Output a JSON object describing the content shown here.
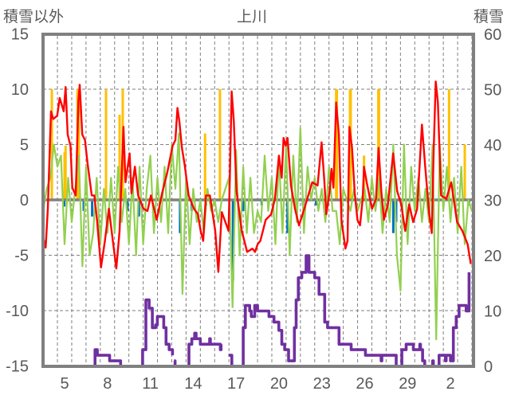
{
  "chart_data": {
    "type": "line",
    "title": "上川",
    "ylabel_left": "積雪以外",
    "ylabel_right": "積雪",
    "ylim_left": [
      -15,
      15
    ],
    "yticks_left": [
      15,
      10,
      5,
      0,
      -5,
      -10,
      -15
    ],
    "ylim_right": [
      0,
      60
    ],
    "yticks_right": [
      60,
      50,
      40,
      30,
      20,
      10,
      0
    ],
    "x_range_days": [
      3.5,
      33.6
    ],
    "x_ticks": [
      {
        "day": 5,
        "label": "5"
      },
      {
        "day": 8,
        "label": "8"
      },
      {
        "day": 11,
        "label": "11"
      },
      {
        "day": 14,
        "label": "14"
      },
      {
        "day": 17,
        "label": "17"
      },
      {
        "day": 20,
        "label": "20"
      },
      {
        "day": 23,
        "label": "23"
      },
      {
        "day": 26,
        "label": "26"
      },
      {
        "day": 29,
        "label": "29"
      },
      {
        "day": 32,
        "label": "2"
      }
    ],
    "grid": true,
    "colors": {
      "red": "#ff0000",
      "green": "#92d050",
      "yellow": "#ffc000",
      "blue": "#0070c0",
      "purple": "#7030a0",
      "frame": "#808080"
    },
    "red_series": [
      [
        3.46,
        -3.2
      ],
      [
        3.68,
        -4.3
      ],
      [
        3.83,
        -0.8
      ],
      [
        4.0,
        6.1
      ],
      [
        4.05,
        8.0
      ],
      [
        4.2,
        7.3
      ],
      [
        4.48,
        7.6
      ],
      [
        4.66,
        9.2
      ],
      [
        4.94,
        8.0
      ],
      [
        5.07,
        10.2
      ],
      [
        5.22,
        5.9
      ],
      [
        5.41,
        4.9
      ],
      [
        5.54,
        1.1
      ],
      [
        5.78,
        0.4
      ],
      [
        5.97,
        9.0
      ],
      [
        6.06,
        10.4
      ],
      [
        6.24,
        5.9
      ],
      [
        6.43,
        5.4
      ],
      [
        6.62,
        3.2
      ],
      [
        6.9,
        0.4
      ],
      [
        7.08,
        0.4
      ],
      [
        7.27,
        -1.8
      ],
      [
        7.55,
        -6.1
      ],
      [
        7.82,
        -3.7
      ],
      [
        8.1,
        -0.8
      ],
      [
        8.29,
        -2.8
      ],
      [
        8.62,
        -6.2
      ],
      [
        8.85,
        -2.8
      ],
      [
        9.12,
        6.6
      ],
      [
        9.26,
        1.6
      ],
      [
        9.55,
        4.2
      ],
      [
        9.68,
        0.6
      ],
      [
        9.92,
        3.0
      ],
      [
        10.15,
        0.4
      ],
      [
        10.52,
        -0.8
      ],
      [
        10.8,
        -1.0
      ],
      [
        11.04,
        0.4
      ],
      [
        11.45,
        -1.8
      ],
      [
        11.82,
        0.6
      ],
      [
        12.19,
        2.5
      ],
      [
        12.56,
        4.9
      ],
      [
        12.75,
        5.4
      ],
      [
        12.9,
        8.3
      ],
      [
        13.03,
        7.1
      ],
      [
        13.21,
        4.7
      ],
      [
        13.4,
        3.2
      ],
      [
        13.68,
        0.4
      ],
      [
        14.05,
        -0.8
      ],
      [
        14.33,
        -1.3
      ],
      [
        14.52,
        -2.8
      ],
      [
        14.7,
        -3.7
      ],
      [
        14.89,
        0.4
      ],
      [
        15.17,
        0.4
      ],
      [
        15.54,
        -2.8
      ],
      [
        15.76,
        -6.5
      ],
      [
        16.0,
        -1.1
      ],
      [
        16.47,
        -2.8
      ],
      [
        16.56,
        2.0
      ],
      [
        16.69,
        9.8
      ],
      [
        16.84,
        7.1
      ],
      [
        17.03,
        0.8
      ],
      [
        17.4,
        -2.8
      ],
      [
        17.77,
        -4.7
      ],
      [
        18.14,
        -4.4
      ],
      [
        18.33,
        -4.7
      ],
      [
        18.51,
        -4.0
      ],
      [
        18.7,
        -3.7
      ],
      [
        19.07,
        -1.8
      ],
      [
        19.45,
        -1.3
      ],
      [
        19.72,
        0.1
      ],
      [
        20.0,
        4.0
      ],
      [
        20.19,
        2.0
      ],
      [
        20.32,
        5.6
      ],
      [
        20.47,
        4.9
      ],
      [
        20.6,
        5.6
      ],
      [
        20.84,
        1.3
      ],
      [
        21.12,
        -0.8
      ],
      [
        21.4,
        -2.3
      ],
      [
        21.77,
        -0.8
      ],
      [
        22.05,
        0.4
      ],
      [
        22.33,
        1.6
      ],
      [
        22.7,
        1.3
      ],
      [
        22.98,
        5.2
      ],
      [
        23.16,
        2.0
      ],
      [
        23.31,
        -1.3
      ],
      [
        23.53,
        0.6
      ],
      [
        23.68,
        2.8
      ],
      [
        23.81,
        1.1
      ],
      [
        24.0,
        8.8
      ],
      [
        24.19,
        5.9
      ],
      [
        24.37,
        -1.8
      ],
      [
        24.65,
        -4.4
      ],
      [
        24.8,
        -3.7
      ],
      [
        24.93,
        6.6
      ],
      [
        25.11,
        4.7
      ],
      [
        25.3,
        0.6
      ],
      [
        25.49,
        -1.8
      ],
      [
        25.67,
        -2.3
      ],
      [
        25.86,
        0.1
      ],
      [
        25.95,
        3.0
      ],
      [
        26.14,
        1.6
      ],
      [
        26.32,
        0.4
      ],
      [
        26.51,
        -0.8
      ],
      [
        26.79,
        0.1
      ],
      [
        26.97,
        4.7
      ],
      [
        27.16,
        0.8
      ],
      [
        27.34,
        -1.8
      ],
      [
        27.62,
        -0.4
      ],
      [
        27.81,
        2.0
      ],
      [
        27.99,
        4.2
      ],
      [
        28.27,
        0.8
      ],
      [
        28.55,
        -0.4
      ],
      [
        28.83,
        -2.8
      ],
      [
        29.11,
        -0.4
      ],
      [
        29.39,
        -2.0
      ],
      [
        29.67,
        -0.8
      ],
      [
        30.0,
        6.8
      ],
      [
        30.23,
        3.0
      ],
      [
        30.5,
        -1.1
      ],
      [
        30.69,
        -3.0
      ],
      [
        30.82,
        4.4
      ],
      [
        30.97,
        10.7
      ],
      [
        31.12,
        8.8
      ],
      [
        31.34,
        0.4
      ],
      [
        31.71,
        0.1
      ],
      [
        32.05,
        1.6
      ],
      [
        32.46,
        -2.0
      ],
      [
        32.83,
        -2.8
      ],
      [
        33.2,
        -4.0
      ],
      [
        33.42,
        -5.8
      ]
    ],
    "green_series": {
      "start_day": 3.5,
      "step_day": 0.25,
      "values": [
        -1,
        1,
        2,
        5,
        3,
        4,
        -4,
        2,
        -2,
        1,
        4,
        -6,
        3,
        -5,
        -3,
        2,
        -4,
        1,
        -3,
        2,
        -3,
        3,
        -2,
        1,
        -4,
        2,
        -5,
        3,
        -4,
        1,
        4,
        -3,
        2,
        -2,
        3,
        -3,
        5,
        1,
        6,
        -8.5,
        2,
        -4,
        1,
        -2,
        0,
        -3,
        1,
        -1,
        0,
        -2,
        0,
        1,
        2,
        -9.7,
        4.5,
        -5,
        3,
        -3,
        2,
        -3,
        -1,
        -2,
        4,
        -1,
        2,
        -4,
        4,
        -3,
        5,
        -5,
        4,
        -2,
        6.5,
        -3,
        3,
        0,
        2,
        -1,
        1,
        -2,
        3,
        -1,
        -1,
        -4,
        1,
        0,
        -1,
        1,
        -1,
        0,
        1,
        -2,
        2,
        -1,
        2,
        -3,
        1,
        -2,
        5,
        -5,
        -8.2,
        5,
        -4,
        3,
        -1,
        2,
        -2,
        1,
        -2,
        5,
        -12.6,
        5,
        -1,
        3,
        -2,
        2,
        -3,
        3,
        -4,
        0,
        -1
      ]
    },
    "yellow_bars": [
      [
        4.11,
        10
      ],
      [
        5.0,
        4.3
      ],
      [
        5.07,
        4.9
      ],
      [
        5.9,
        10
      ],
      [
        5.95,
        10
      ],
      [
        6.0,
        10
      ],
      [
        7.9,
        10
      ],
      [
        8.85,
        7.7
      ],
      [
        9.07,
        10
      ],
      [
        14.83,
        6
      ],
      [
        15.87,
        10
      ],
      [
        24.0,
        10
      ],
      [
        24.05,
        10
      ],
      [
        24.97,
        10
      ],
      [
        25.02,
        10
      ],
      [
        25.95,
        4
      ],
      [
        26.95,
        10
      ],
      [
        27.0,
        10
      ],
      [
        31.9,
        10
      ],
      [
        33.0,
        5
      ]
    ],
    "blue_bars": [
      [
        4.98,
        -0.6
      ],
      [
        6.34,
        -1
      ],
      [
        6.93,
        -1.5
      ],
      [
        9.4,
        -1
      ],
      [
        10.2,
        -1.5
      ],
      [
        13.08,
        -3
      ],
      [
        13.9,
        -1
      ],
      [
        14.9,
        -0.5
      ],
      [
        16.78,
        -7.3
      ],
      [
        17.5,
        -1
      ],
      [
        18.8,
        -0.5
      ],
      [
        20.6,
        -3
      ],
      [
        21.68,
        -0.5
      ],
      [
        22.6,
        -0.5
      ],
      [
        28.0,
        -3
      ],
      [
        28.2,
        -2
      ],
      [
        33.3,
        -0.5
      ]
    ],
    "purple_snow_depth": [
      [
        [
          3.44,
          0
        ],
        [
          7.06,
          0
        ],
        [
          7.13,
          3
        ],
        [
          7.29,
          2
        ],
        [
          8.04,
          2
        ],
        [
          8.15,
          1
        ],
        [
          8.88,
          1
        ],
        [
          8.92,
          0
        ],
        [
          10.35,
          0
        ],
        [
          10.46,
          3
        ],
        [
          10.69,
          12
        ],
        [
          10.92,
          10.5
        ],
        [
          11.14,
          7
        ],
        [
          11.37,
          7.5
        ],
        [
          11.49,
          9
        ],
        [
          11.71,
          9
        ],
        [
          11.94,
          7
        ],
        [
          12.1,
          4
        ],
        [
          12.32,
          3
        ],
        [
          12.55,
          2
        ]
      ],
      [
        [
          12.66,
          1
        ],
        [
          12.73,
          0
        ],
        [
          13.6,
          0
        ],
        [
          13.7,
          4
        ],
        [
          13.9,
          5
        ],
        [
          14.1,
          6
        ],
        [
          14.2,
          5
        ],
        [
          14.5,
          4
        ],
        [
          14.8,
          4
        ],
        [
          15.1,
          4
        ],
        [
          15.15,
          5
        ],
        [
          15.2,
          4
        ],
        [
          15.8,
          4
        ],
        [
          15.9,
          3
        ],
        [
          15.95,
          4
        ]
      ],
      [
        [
          16.47,
          2
        ],
        [
          16.7,
          0
        ],
        [
          17.38,
          0
        ],
        [
          17.5,
          7
        ],
        [
          17.65,
          11
        ],
        [
          17.95,
          10
        ],
        [
          18.06,
          9
        ],
        [
          18.3,
          11
        ],
        [
          18.5,
          10
        ],
        [
          19.1,
          10
        ],
        [
          19.3,
          9
        ],
        [
          19.65,
          8
        ],
        [
          19.99,
          6.5
        ],
        [
          20.2,
          4
        ],
        [
          20.4,
          3
        ],
        [
          20.67,
          1
        ],
        [
          20.9,
          1
        ],
        [
          21.08,
          7
        ],
        [
          21.2,
          12
        ],
        [
          21.35,
          16
        ],
        [
          21.6,
          17
        ],
        [
          21.9,
          20
        ],
        [
          22.1,
          17
        ],
        [
          22.5,
          16
        ],
        [
          22.8,
          13
        ],
        [
          23.2,
          8
        ],
        [
          23.4,
          7
        ],
        [
          24.0,
          7
        ],
        [
          24.2,
          4
        ],
        [
          25.0,
          4
        ],
        [
          25.05,
          3
        ],
        [
          26.0,
          3
        ],
        [
          26.05,
          2
        ],
        [
          27.1,
          2
        ],
        [
          27.15,
          1
        ],
        [
          27.2,
          2
        ],
        [
          28.0,
          2
        ],
        [
          28.2,
          0
        ],
        [
          28.4,
          0
        ],
        [
          28.6,
          3
        ],
        [
          28.9,
          4
        ],
        [
          29.3,
          4
        ],
        [
          29.4,
          3
        ],
        [
          29.8,
          3
        ],
        [
          29.85,
          4
        ],
        [
          29.9,
          3
        ],
        [
          30.05,
          1
        ],
        [
          30.2,
          0
        ],
        [
          30.7,
          0
        ],
        [
          30.75,
          1
        ],
        [
          30.8,
          0
        ],
        [
          31.1,
          0
        ],
        [
          31.2,
          2
        ],
        [
          31.6,
          2
        ],
        [
          31.65,
          1
        ],
        [
          31.7,
          2
        ],
        [
          31.9,
          2
        ],
        [
          32.0,
          1
        ],
        [
          32.2,
          7
        ],
        [
          32.4,
          9
        ],
        [
          32.6,
          11
        ],
        [
          32.9,
          11
        ],
        [
          33.1,
          10
        ],
        [
          33.3,
          17
        ]
      ]
    ]
  }
}
